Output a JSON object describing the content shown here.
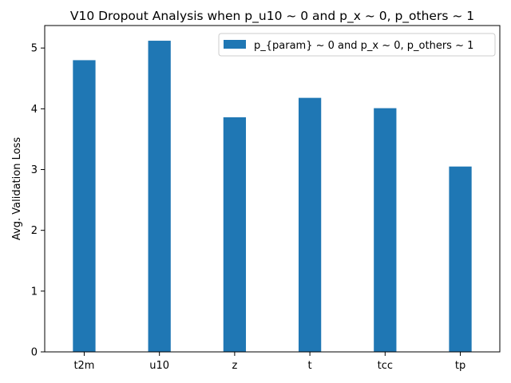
{
  "chart_data": {
    "type": "bar",
    "title": "V10 Dropout Analysis when p_u10 ~ 0 and p_x ~ 0, p_others ~ 1",
    "xlabel": "",
    "ylabel": "Avg. Validation Loss",
    "categories": [
      "t2m",
      "u10",
      "z",
      "t",
      "tcc",
      "tp"
    ],
    "series": [
      {
        "name": "p_{param} ~ 0 and p_x ~ 0, p_others ~ 1",
        "values": [
          4.8,
          5.12,
          3.86,
          4.18,
          4.01,
          3.05
        ],
        "color": "#1f77b4"
      }
    ],
    "ylim": [
      0,
      5.37
    ],
    "yticks": [
      "0",
      "1",
      "2",
      "3",
      "4",
      "5"
    ],
    "grid": false,
    "legend_position": "top-right"
  }
}
